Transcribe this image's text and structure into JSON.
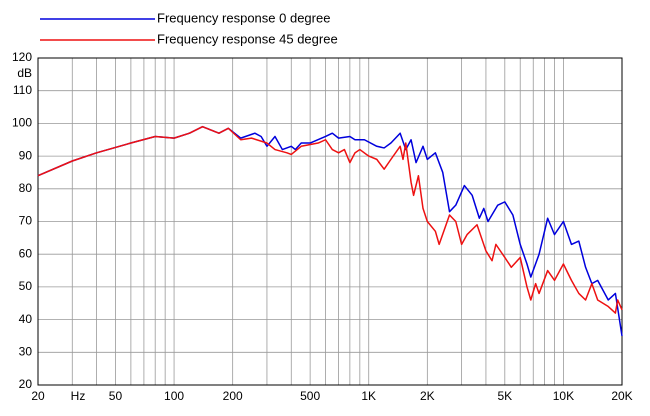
{
  "chart_data": {
    "type": "line",
    "x_label": "Hz",
    "y_label": "dB",
    "xscale": "log",
    "grid": true,
    "legend": "top-left",
    "xlim": [
      20,
      20000
    ],
    "ylim": [
      20,
      120
    ],
    "yticks": [
      20,
      30,
      40,
      50,
      60,
      70,
      80,
      90,
      100,
      110,
      120
    ],
    "xticks": [
      20,
      50,
      100,
      200,
      500,
      {
        "value": 1000,
        "label": "1K"
      },
      {
        "value": 2000,
        "label": "2K"
      },
      {
        "value": 5000,
        "label": "5K"
      },
      {
        "value": 10000,
        "label": "10K"
      },
      {
        "value": 20000,
        "label": "20K"
      }
    ],
    "x_minor_grid": [
      30,
      40,
      60,
      70,
      80,
      90,
      300,
      400,
      600,
      700,
      800,
      900,
      3000,
      4000,
      6000,
      7000,
      8000,
      9000
    ],
    "series": [
      {
        "name": "Frequency response 0 degree",
        "color": "#0000dd",
        "x": [
          20,
          30,
          40,
          60,
          80,
          100,
          120,
          140,
          170,
          190,
          220,
          260,
          280,
          300,
          330,
          360,
          400,
          420,
          450,
          500,
          600,
          650,
          700,
          800,
          850,
          950,
          1100,
          1200,
          1300,
          1450,
          1550,
          1650,
          1750,
          1900,
          2000,
          2200,
          2400,
          2600,
          2800,
          3100,
          3400,
          3700,
          3900,
          4100,
          4600,
          5000,
          5500,
          6000,
          6500,
          6800,
          7500,
          8300,
          9000,
          10000,
          11000,
          12000,
          13000,
          14000,
          15000,
          17000,
          18500,
          20000
        ],
        "values": [
          84,
          88.5,
          91,
          94,
          96,
          95.5,
          97,
          99,
          97,
          98.5,
          95.5,
          97,
          96,
          93,
          96,
          92,
          93,
          92,
          94,
          94,
          96,
          97,
          95.5,
          96,
          95,
          95,
          93,
          92.5,
          94,
          97,
          92,
          95,
          88,
          93,
          89,
          91,
          85,
          73,
          75,
          81,
          78,
          71,
          74,
          70,
          75,
          76,
          72,
          63,
          57,
          53,
          60,
          71,
          66,
          70,
          63,
          64,
          56,
          51,
          52,
          46,
          48,
          35
        ]
      },
      {
        "name": "Frequency response 45 degree",
        "color": "#ee1111",
        "x": [
          20,
          30,
          40,
          60,
          80,
          100,
          120,
          140,
          170,
          190,
          220,
          250,
          300,
          330,
          380,
          400,
          450,
          550,
          600,
          650,
          700,
          750,
          800,
          850,
          900,
          1000,
          1100,
          1200,
          1300,
          1450,
          1500,
          1550,
          1650,
          1700,
          1800,
          1900,
          2000,
          2200,
          2300,
          2600,
          2800,
          3000,
          3200,
          3600,
          4000,
          4300,
          4500,
          5000,
          5400,
          6000,
          6500,
          6800,
          7200,
          7500,
          8300,
          9000,
          10000,
          11000,
          12000,
          13000,
          14000,
          15000,
          17000,
          18500,
          19000,
          20000
        ],
        "values": [
          84,
          88.5,
          91,
          94,
          96,
          95.5,
          97,
          99,
          97,
          98.5,
          95,
          95.5,
          94,
          92,
          91,
          90.5,
          93,
          94,
          95,
          92,
          91,
          92,
          88,
          91,
          92,
          90,
          89,
          86,
          89,
          93,
          89,
          94,
          82,
          78,
          84,
          74,
          70,
          67,
          63,
          72,
          70,
          63,
          66,
          69,
          61,
          58,
          63,
          59,
          56,
          59,
          50,
          46,
          51,
          48,
          55,
          52,
          57,
          52,
          48,
          46,
          51,
          46,
          44,
          42,
          46,
          43
        ]
      }
    ]
  }
}
